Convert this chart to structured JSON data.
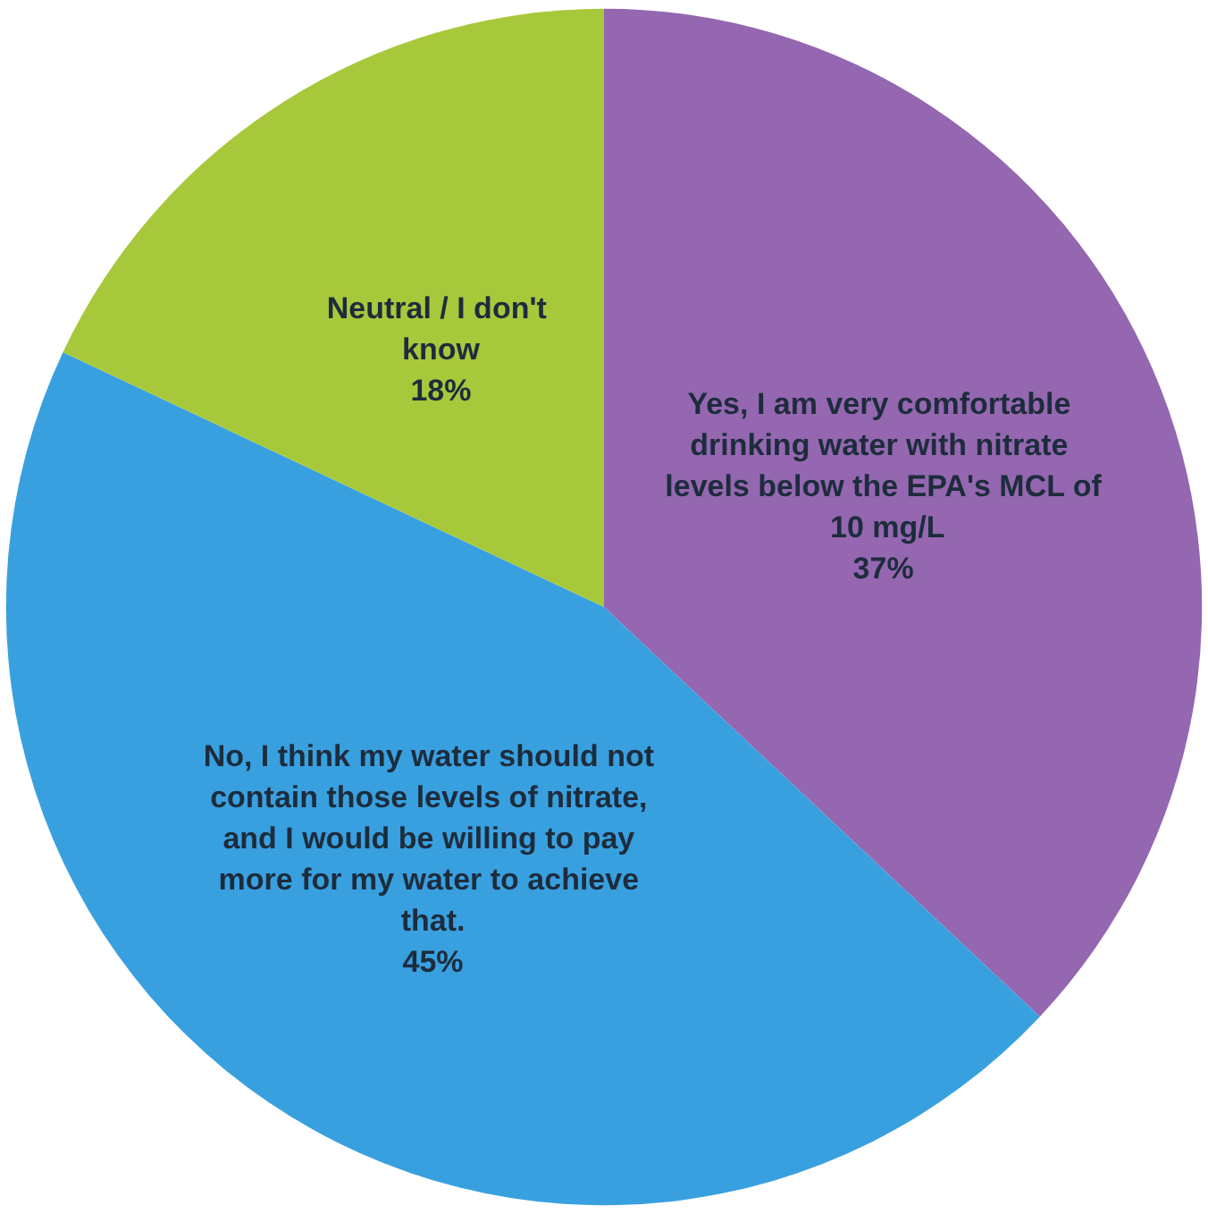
{
  "chart_data": {
    "type": "pie",
    "categories": [
      "Yes, I am very comfortable drinking water with nitrate levels below the EPA's MCL of 10 mg/L",
      "No, I think my water should not contain those levels of nitrate, and I would be willing to pay more for my water to achieve that.",
      "Neutral / I don't know"
    ],
    "values": [
      37,
      45,
      18
    ],
    "value_labels": [
      "37%",
      "45%",
      "18%"
    ],
    "colors": [
      "#9467b0",
      "#39a0e0",
      "#a8c83c"
    ],
    "legend": false
  }
}
